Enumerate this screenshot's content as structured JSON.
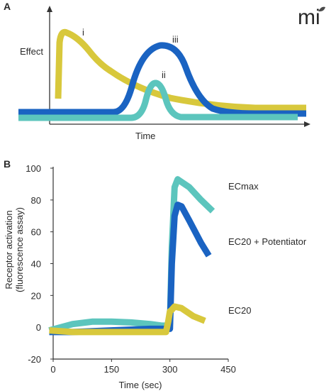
{
  "logo": {
    "text": "mi",
    "color": "#4a4a4a"
  },
  "colors": {
    "yellow": "#d8c83c",
    "teal": "#5cc5bd",
    "blue": "#1a63c2",
    "axis": "#333333"
  },
  "chart_data": [
    {
      "panel": "A",
      "type": "line",
      "xlabel": "Time",
      "ylabel": "Effect",
      "axis_ticks": false,
      "series": [
        {
          "name": "i",
          "color": "yellow"
        },
        {
          "name": "ii",
          "color": "teal"
        },
        {
          "name": "iii",
          "color": "blue"
        }
      ]
    },
    {
      "panel": "B",
      "type": "line",
      "xlabel": "Time (sec)",
      "ylabel": "Receptor activation",
      "ylabel2": "(fluorescence assay)",
      "xlim": [
        0,
        450
      ],
      "ylim": [
        -20,
        100
      ],
      "xticks": [
        0,
        150,
        300,
        450
      ],
      "yticks": [
        -20,
        0,
        20,
        40,
        60,
        80,
        100
      ],
      "grid": false,
      "series": [
        {
          "name": "ECmax",
          "color": "teal",
          "x": [
            -10,
            50,
            100,
            150,
            200,
            250,
            280,
            292,
            300,
            305,
            312,
            320,
            350,
            380,
            410
          ],
          "y": [
            -2,
            2,
            3.5,
            3.5,
            3,
            2,
            1,
            1,
            2,
            50,
            88,
            93,
            88,
            80,
            73
          ]
        },
        {
          "name": "EC20 + Potentiator",
          "color": "blue",
          "x": [
            -10,
            50,
            150,
            250,
            290,
            300,
            305,
            312,
            320,
            330,
            350,
            380,
            400
          ],
          "y": [
            -3,
            -3,
            -2,
            -1,
            -1,
            -1,
            40,
            70,
            77,
            76,
            67,
            53,
            45
          ]
        },
        {
          "name": "EC20",
          "color": "yellow",
          "x": [
            -10,
            50,
            100,
            200,
            270,
            290,
            296,
            300,
            305,
            312,
            330,
            360,
            390
          ],
          "y": [
            -2,
            -3,
            -3,
            -3,
            -3,
            -3,
            4,
            10,
            11,
            13,
            12,
            7,
            4
          ]
        }
      ]
    }
  ]
}
